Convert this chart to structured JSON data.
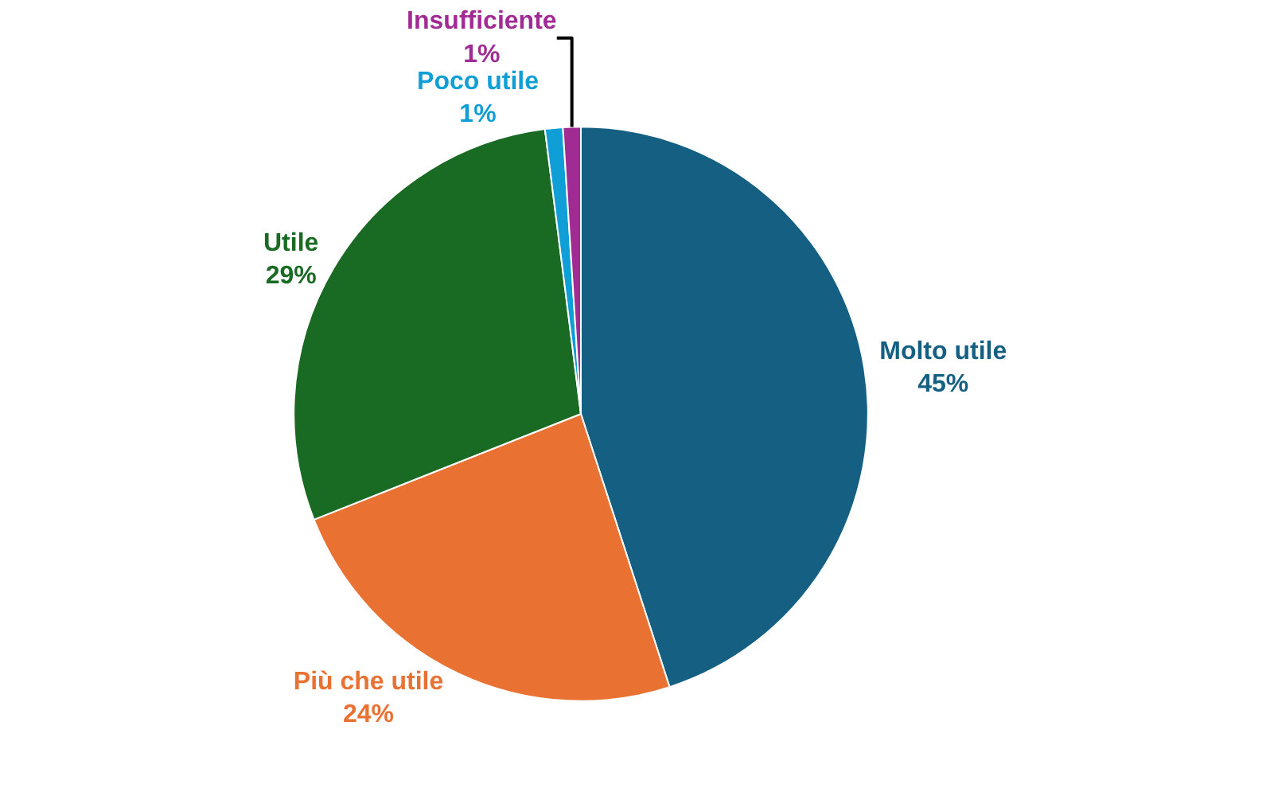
{
  "chart_data": {
    "type": "pie",
    "categories": [
      "Molto utile",
      "Più che utile",
      "Utile",
      "Poco utile",
      "Insufficiente"
    ],
    "values": [
      45,
      24,
      29,
      1,
      1
    ],
    "value_labels": [
      "45%",
      "24%",
      "29%",
      "1%",
      "1%"
    ],
    "colors": [
      "#156082",
      "#e97132",
      "#196b24",
      "#0f9ed5",
      "#a02b93"
    ],
    "legend": false
  }
}
